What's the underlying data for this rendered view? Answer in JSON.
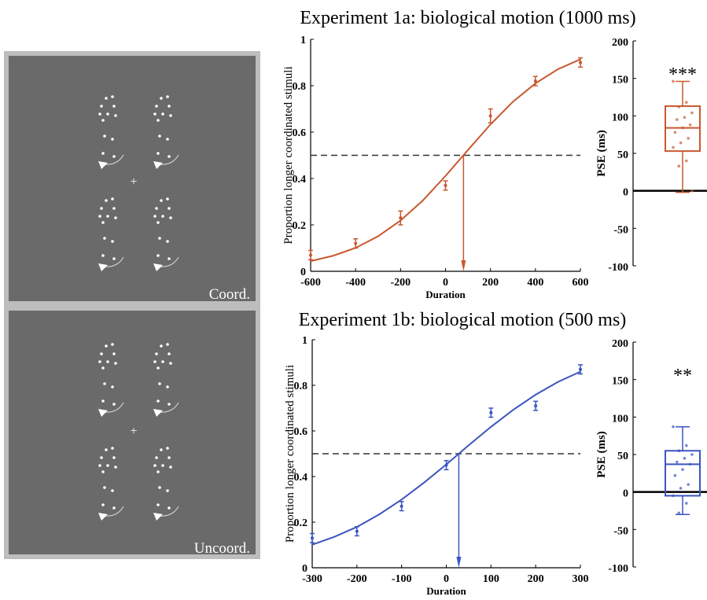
{
  "panels": [
    {
      "label": "Coord."
    },
    {
      "label": "Uncoord."
    }
  ],
  "chart_data": [
    {
      "type": "line",
      "title": "Experiment 1a: biological motion (1000 ms)",
      "x_label": "Duration",
      "y_label": "Proportion longer coordinated stimuli",
      "color": "#c9582f",
      "xlim": [
        -600,
        600
      ],
      "xticks": [
        -600,
        -400,
        -200,
        0,
        200,
        400,
        600
      ],
      "ylim": [
        0,
        1
      ],
      "yticks": [
        0,
        0.2,
        0.4,
        0.6,
        0.8,
        1
      ],
      "points": {
        "x": [
          -600,
          -400,
          -200,
          0,
          200,
          400,
          600
        ],
        "values": [
          0.07,
          0.12,
          0.23,
          0.37,
          0.67,
          0.82,
          0.9
        ],
        "errors": [
          0.02,
          0.02,
          0.03,
          0.02,
          0.03,
          0.02,
          0.02
        ]
      },
      "fit": {
        "x": [
          -600,
          -500,
          -400,
          -300,
          -200,
          -100,
          0,
          100,
          200,
          300,
          400,
          500,
          600
        ],
        "values": [
          0.044,
          0.067,
          0.101,
          0.151,
          0.219,
          0.306,
          0.411,
          0.523,
          0.633,
          0.731,
          0.81,
          0.871,
          0.914
        ]
      },
      "threshold": 0.5,
      "pse": 80
    },
    {
      "type": "box",
      "y_label": "PSE (ms)",
      "annotation": "***",
      "color": "#c9582f",
      "ylim": [
        -100,
        200
      ],
      "yticks": [
        -100,
        -50,
        0,
        50,
        100,
        150,
        200
      ],
      "box": {
        "min": -2,
        "q1": 53,
        "median": 84,
        "q3": 113,
        "max": 146
      },
      "points": [
        146,
        118,
        112,
        104,
        98,
        95,
        88,
        84,
        78,
        70,
        64,
        58,
        40,
        33,
        0
      ]
    },
    {
      "type": "line",
      "title": "Experiment 1b: biological motion (500 ms)",
      "x_label": "Duration",
      "y_label": "Proportion longer coordinated stimuli",
      "color": "#3a55c0",
      "xlim": [
        -300,
        300
      ],
      "xticks": [
        -300,
        -200,
        -100,
        0,
        100,
        200,
        300
      ],
      "ylim": [
        0,
        1
      ],
      "yticks": [
        0,
        0.2,
        0.4,
        0.6,
        0.8,
        1
      ],
      "points": {
        "x": [
          -300,
          -200,
          -100,
          0,
          100,
          200,
          300
        ],
        "values": [
          0.13,
          0.16,
          0.27,
          0.45,
          0.68,
          0.71,
          0.87
        ],
        "errors": [
          0.02,
          0.02,
          0.02,
          0.02,
          0.02,
          0.02,
          0.02
        ]
      },
      "fit": {
        "x": [
          -300,
          -250,
          -200,
          -150,
          -100,
          -50,
          0,
          50,
          100,
          150,
          200,
          250,
          300
        ],
        "values": [
          0.101,
          0.136,
          0.179,
          0.234,
          0.299,
          0.373,
          0.453,
          0.537,
          0.618,
          0.693,
          0.759,
          0.815,
          0.86
        ]
      },
      "threshold": 0.5,
      "pse": 28
    },
    {
      "type": "box",
      "y_label": "PSE (ms)",
      "annotation": "**",
      "color": "#3a55c0",
      "ylim": [
        -100,
        200
      ],
      "yticks": [
        -100,
        -50,
        0,
        50,
        100,
        150,
        200
      ],
      "box": {
        "min": -30,
        "q1": -5,
        "median": 37,
        "q3": 55,
        "max": 87
      },
      "points": [
        87,
        62,
        55,
        50,
        45,
        40,
        37,
        30,
        22,
        10,
        5,
        -5,
        -15,
        -28
      ]
    }
  ]
}
